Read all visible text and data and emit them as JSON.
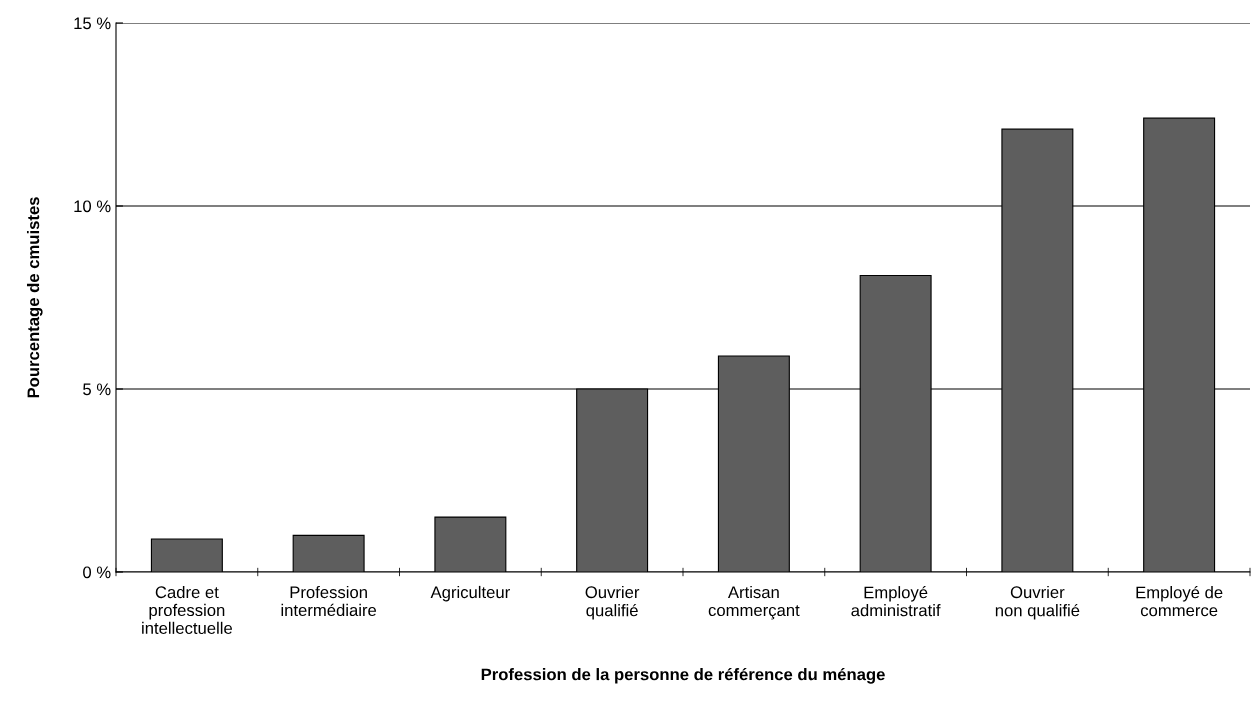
{
  "chart_data": {
    "type": "bar",
    "xlabel": "Profession de la personne de référence du ménage",
    "ylabel": "Pourcentage de cmuistes",
    "categories": [
      "Cadre et\nprofession\nintellectuelle",
      "Profession\nintermédiaire",
      "Agriculteur",
      "Ouvrier\nqualifié",
      "Artisan\ncommerçant",
      "Employé\nadministratif",
      "Ouvrier\nnon qualifié",
      "Employé de\ncommerce"
    ],
    "values": [
      0.9,
      1.0,
      1.5,
      5.0,
      5.9,
      8.1,
      12.1,
      12.4
    ],
    "color": "#5e5e5e",
    "ylim": [
      0,
      15
    ],
    "yticks": [
      {
        "value": 0,
        "label": "0 %"
      },
      {
        "value": 5,
        "label": "5 %"
      },
      {
        "value": 10,
        "label": "10 %"
      },
      {
        "value": 15,
        "label": "15 %"
      }
    ],
    "grid": "y"
  }
}
